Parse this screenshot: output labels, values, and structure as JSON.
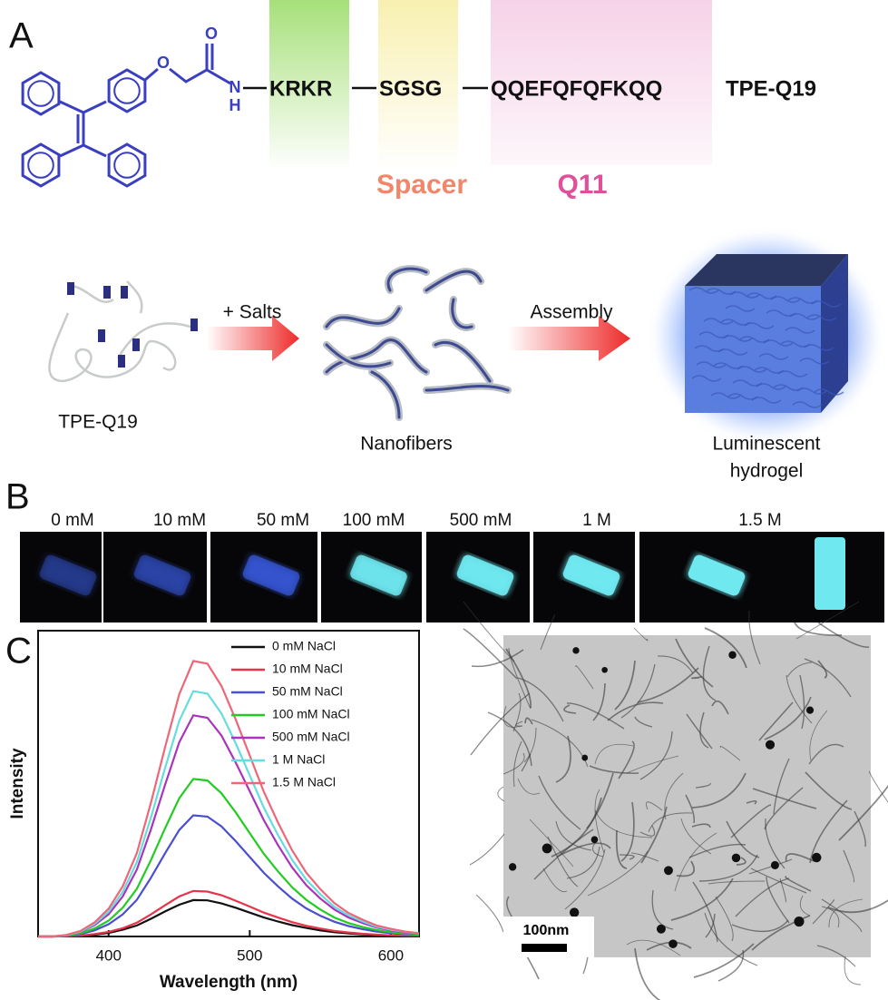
{
  "panel_labels": [
    "A",
    "B",
    "C"
  ],
  "panel_a": {
    "atoms": [
      "O",
      "O",
      "N",
      "H"
    ],
    "sequence": [
      "KRKR",
      "SGSG",
      "QQEFQFQFKQQ"
    ],
    "name": "TPE-Q19",
    "spacer_label": "Spacer",
    "q11_label": "Q11",
    "schematic": {
      "step1": "TPE-Q19",
      "arrow1": "+ Salts",
      "step2": "Nanofibers",
      "arrow2": "Assembly",
      "step3": [
        "Luminescent",
        "hydrogel"
      ]
    }
  },
  "panel_b": {
    "concentrations": [
      "0 mM",
      "10 mM",
      "50 mM",
      "100 mM",
      "500 mM",
      "1 M",
      "1.5 M"
    ]
  },
  "chart_data": {
    "type": "line",
    "xlabel": "Wavelength (nm)",
    "ylabel": "Intensity",
    "x": [
      350,
      360,
      370,
      380,
      390,
      400,
      410,
      420,
      430,
      440,
      450,
      460,
      470,
      480,
      490,
      500,
      510,
      520,
      530,
      540,
      550,
      560,
      570,
      580,
      590,
      600,
      610,
      620
    ],
    "xlim": [
      350,
      620
    ],
    "xticks": [
      400,
      500,
      600
    ],
    "ylim": [
      0,
      10
    ],
    "legend": "upper right",
    "series": [
      {
        "name": "0 mM NaCl",
        "color": "#111111",
        "values": [
          0,
          0,
          0.01,
          0.02,
          0.06,
          0.12,
          0.22,
          0.36,
          0.58,
          0.82,
          1.04,
          1.19,
          1.18,
          1.08,
          0.94,
          0.78,
          0.62,
          0.49,
          0.37,
          0.28,
          0.2,
          0.14,
          0.1,
          0.07,
          0.05,
          0.03,
          0.02,
          0.01
        ]
      },
      {
        "name": "10 mM NaCl",
        "color": "#e8334a",
        "values": [
          0,
          0,
          0.01,
          0.03,
          0.08,
          0.15,
          0.27,
          0.45,
          0.72,
          1.02,
          1.31,
          1.49,
          1.47,
          1.35,
          1.17,
          0.98,
          0.78,
          0.62,
          0.47,
          0.35,
          0.26,
          0.18,
          0.13,
          0.09,
          0.06,
          0.04,
          0.03,
          0.02
        ]
      },
      {
        "name": "50 mM NaCl",
        "color": "#4a4fd0",
        "values": [
          0,
          0,
          0.02,
          0.08,
          0.2,
          0.4,
          0.72,
          1.2,
          1.92,
          2.72,
          3.48,
          3.96,
          3.92,
          3.6,
          3.12,
          2.6,
          2.08,
          1.64,
          1.24,
          0.92,
          0.68,
          0.48,
          0.34,
          0.24,
          0.16,
          0.11,
          0.07,
          0.05
        ]
      },
      {
        "name": "100 mM NaCl",
        "color": "#22cc22",
        "values": [
          0,
          0,
          0.03,
          0.1,
          0.26,
          0.52,
          0.94,
          1.56,
          2.5,
          3.54,
          4.52,
          5.15,
          5.1,
          4.68,
          4.06,
          3.38,
          2.7,
          2.13,
          1.61,
          1.2,
          0.88,
          0.62,
          0.44,
          0.31,
          0.21,
          0.14,
          0.09,
          0.06
        ]
      },
      {
        "name": "500 mM NaCl",
        "color": "#aa33bb",
        "values": [
          0,
          0,
          0.04,
          0.15,
          0.37,
          0.73,
          1.31,
          2.19,
          3.5,
          4.96,
          6.35,
          7.23,
          7.15,
          6.57,
          5.69,
          4.75,
          3.8,
          2.99,
          2.26,
          1.68,
          1.24,
          0.88,
          0.62,
          0.44,
          0.29,
          0.2,
          0.13,
          0.09
        ]
      },
      {
        "name": "1 M NaCl",
        "color": "#66dddd",
        "values": [
          0,
          0,
          0.04,
          0.16,
          0.41,
          0.81,
          1.46,
          2.43,
          3.89,
          5.51,
          7.05,
          8.02,
          7.94,
          7.29,
          6.32,
          5.27,
          4.21,
          3.32,
          2.51,
          1.86,
          1.38,
          0.97,
          0.69,
          0.49,
          0.32,
          0.22,
          0.15,
          0.1
        ]
      },
      {
        "name": "1.5 M NaCl",
        "color": "#ee6677",
        "values": [
          0,
          0,
          0.05,
          0.18,
          0.46,
          0.91,
          1.64,
          2.73,
          4.37,
          6.19,
          7.92,
          9.01,
          8.92,
          8.19,
          7.1,
          5.92,
          4.73,
          3.73,
          2.82,
          2.09,
          1.55,
          1.09,
          0.77,
          0.55,
          0.36,
          0.25,
          0.16,
          0.11
        ]
      }
    ]
  },
  "tem": {
    "scale_bar": "100nm"
  }
}
